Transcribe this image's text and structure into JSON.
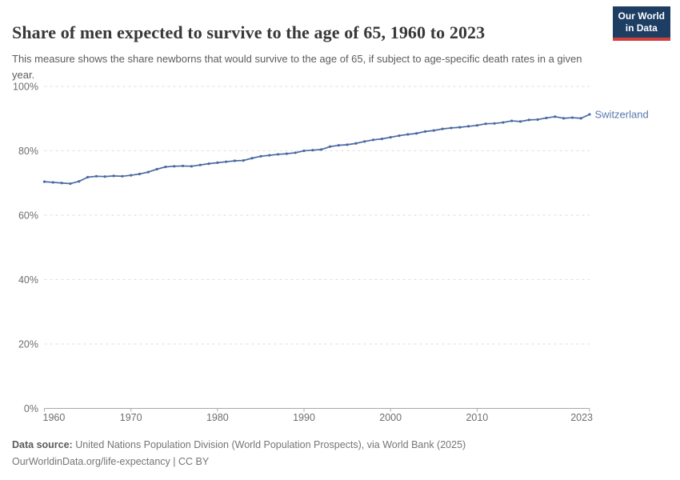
{
  "header": {
    "title": "Share of men expected to survive to the age of 65, 1960 to 2023",
    "subtitle": "This measure shows the share newborns that would survive to the age of 65, if subject to age-specific death rates in a given year.",
    "logo": {
      "line1": "Our World",
      "line2": "in Data",
      "bg_color": "#1d3d63",
      "accent_color": "#d0413d"
    }
  },
  "chart_data": {
    "type": "line",
    "title": "Share of men expected to survive to the age of 65, 1960 to 2023",
    "xlabel": "",
    "ylabel": "",
    "xlim": [
      1960,
      2023
    ],
    "ylim": [
      0,
      100
    ],
    "y_ticks": [
      0,
      20,
      40,
      60,
      80,
      100
    ],
    "y_tick_suffix": "%",
    "x_ticks": [
      1960,
      1970,
      1980,
      1990,
      2000,
      2010,
      2023
    ],
    "grid": "horizontal-dashed",
    "legend_position": "end-of-line-label",
    "x": [
      1960,
      1961,
      1962,
      1963,
      1964,
      1965,
      1966,
      1967,
      1968,
      1969,
      1970,
      1971,
      1972,
      1973,
      1974,
      1975,
      1976,
      1977,
      1978,
      1979,
      1980,
      1981,
      1982,
      1983,
      1984,
      1985,
      1986,
      1987,
      1988,
      1989,
      1990,
      1991,
      1992,
      1993,
      1994,
      1995,
      1996,
      1997,
      1998,
      1999,
      2000,
      2001,
      2002,
      2003,
      2004,
      2005,
      2006,
      2007,
      2008,
      2009,
      2010,
      2011,
      2012,
      2013,
      2014,
      2015,
      2016,
      2017,
      2018,
      2019,
      2020,
      2021,
      2022,
      2023
    ],
    "series": [
      {
        "name": "Switzerland",
        "color": "#4a69a2",
        "label_color": "#5878ad",
        "values": [
          70.4,
          70.2,
          70.0,
          69.8,
          70.5,
          71.8,
          72.1,
          72.0,
          72.2,
          72.1,
          72.4,
          72.8,
          73.4,
          74.3,
          75.0,
          75.2,
          75.3,
          75.2,
          75.6,
          76.0,
          76.3,
          76.6,
          76.9,
          77.0,
          77.7,
          78.3,
          78.6,
          78.9,
          79.1,
          79.4,
          80.0,
          80.2,
          80.4,
          81.3,
          81.7,
          81.9,
          82.3,
          82.9,
          83.4,
          83.7,
          84.2,
          84.7,
          85.1,
          85.4,
          86.0,
          86.3,
          86.8,
          87.1,
          87.3,
          87.6,
          87.9,
          88.4,
          88.5,
          88.8,
          89.3,
          89.1,
          89.6,
          89.7,
          90.2,
          90.6,
          90.1,
          90.3,
          90.1,
          91.3
        ]
      }
    ]
  },
  "footer": {
    "source_label": "Data source:",
    "source_text": " United Nations Population Division (World Population Prospects), via World Bank (2025)",
    "license_line": "OurWorldinData.org/life-expectancy | CC BY"
  }
}
